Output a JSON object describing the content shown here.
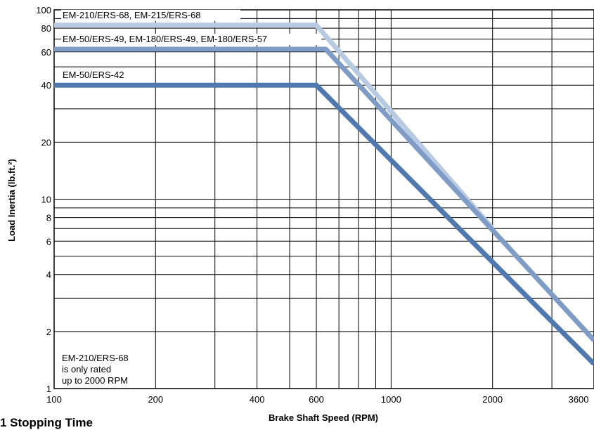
{
  "chart_data": {
    "type": "line",
    "xscale": "log",
    "yscale": "log",
    "xlim": [
      100,
      4000
    ],
    "ylim": [
      1,
      100
    ],
    "xlabel": "Brake Shaft Speed (RPM)",
    "ylabel": "Load Inertia (lb.ft.²)",
    "xticks": [
      100,
      200,
      400,
      600,
      1000,
      2000,
      3600
    ],
    "yticks": [
      1,
      2,
      4,
      6,
      8,
      10,
      20,
      40,
      60,
      80,
      100
    ],
    "grid": true,
    "series": [
      {
        "name": "EM-210/ERS-68, EM-215/ERS-68",
        "color": "#b8c9e2",
        "x": [
          100,
          600,
          2000
        ],
        "y": [
          83,
          83,
          7
        ]
      },
      {
        "name": "EM-50/ERS-49, EM-180/ERS-49, EM-180/ERS-57",
        "color": "#7e9cc6",
        "x": [
          100,
          640,
          4000
        ],
        "y": [
          62,
          62,
          1.8
        ]
      },
      {
        "name": "EM-50/ERS-42",
        "color": "#4f79ae",
        "x": [
          100,
          600,
          4000
        ],
        "y": [
          40,
          40,
          1.35
        ]
      }
    ],
    "annotation": [
      "EM-210/ERS-68",
      "is only rated",
      "up to 2000 RPM"
    ]
  },
  "footer_text": "1 Stopping Time"
}
